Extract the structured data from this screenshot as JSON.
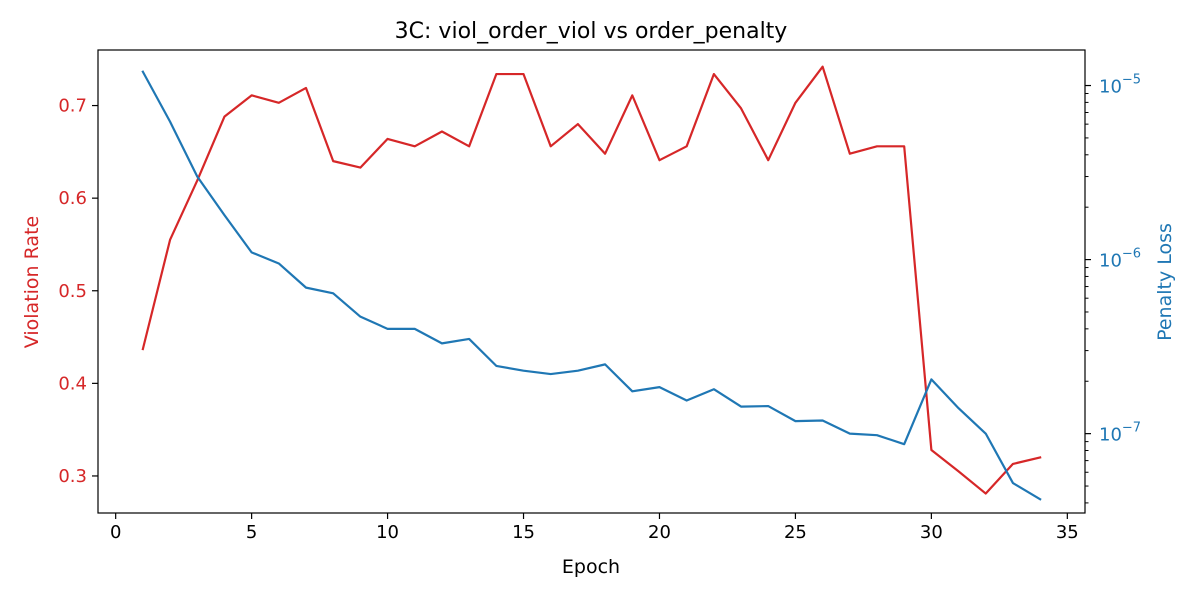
{
  "chart_data": {
    "type": "line",
    "title": "3C: viol_order_viol vs order_penalty",
    "xlabel": "Epoch",
    "ylabel_left": "Violation Rate",
    "ylabel_right": "Penalty Loss",
    "xlim": [
      -0.65,
      35.65
    ],
    "ylim_left": [
      0.26,
      0.76
    ],
    "ylim_right_log": [
      3.5e-08,
      1.6e-05
    ],
    "right_scale": "log",
    "grid": false,
    "x_ticks": [
      0,
      5,
      10,
      15,
      20,
      25,
      30,
      35
    ],
    "y_left_ticks": [
      0.3,
      0.4,
      0.5,
      0.6,
      0.7
    ],
    "y_right_ticks": [
      {
        "value": 1e-07,
        "base": "10",
        "exp": "−7"
      },
      {
        "value": 1e-06,
        "base": "10",
        "exp": "−6"
      },
      {
        "value": 1e-05,
        "base": "10",
        "exp": "−5"
      }
    ],
    "colors": {
      "left": "#d62728",
      "right": "#1f77b4"
    },
    "x": [
      1,
      2,
      3,
      4,
      5,
      6,
      7,
      8,
      9,
      10,
      11,
      12,
      13,
      14,
      15,
      16,
      17,
      18,
      19,
      20,
      21,
      22,
      23,
      24,
      25,
      26,
      27,
      28,
      29,
      30,
      31,
      32,
      33,
      34
    ],
    "series": [
      {
        "name": "Violation Rate",
        "axis": "left",
        "values": [
          0.437,
          0.555,
          0.619,
          0.688,
          0.711,
          0.703,
          0.719,
          0.64,
          0.633,
          0.664,
          0.656,
          0.672,
          0.656,
          0.734,
          0.734,
          0.656,
          0.68,
          0.648,
          0.711,
          0.641,
          0.656,
          0.734,
          0.697,
          0.641,
          0.703,
          0.742,
          0.648,
          0.656,
          0.656,
          0.328,
          0.305,
          0.281,
          0.313,
          0.32
        ]
      },
      {
        "name": "Penalty Loss",
        "axis": "right",
        "values": [
          1.2e-05,
          6.2e-06,
          3e-06,
          1.8e-06,
          1.1e-06,
          9.5e-07,
          6.9e-07,
          6.4e-07,
          4.7e-07,
          4e-07,
          4e-07,
          3.3e-07,
          3.5e-07,
          2.45e-07,
          2.3e-07,
          2.2e-07,
          2.3e-07,
          2.5e-07,
          1.75e-07,
          1.85e-07,
          1.55e-07,
          1.8e-07,
          1.43e-07,
          1.44e-07,
          1.18e-07,
          1.19e-07,
          1e-07,
          9.8e-08,
          8.7e-08,
          2.05e-07,
          1.4e-07,
          1e-07,
          5.2e-08,
          4.2e-08
        ]
      }
    ]
  }
}
